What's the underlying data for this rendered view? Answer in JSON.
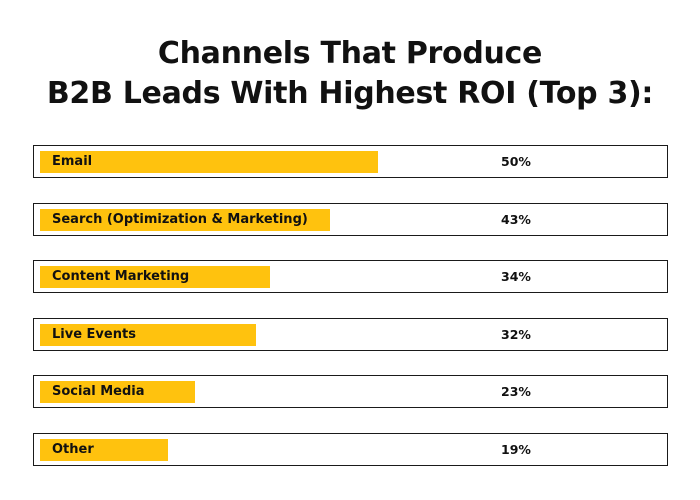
{
  "title": {
    "line1": "Channels That Produce",
    "line2": "B2B Leads With Highest ROI (Top 3):"
  },
  "chart_data": {
    "type": "bar",
    "orientation": "horizontal",
    "title": "Channels That Produce B2B Leads With Highest ROI (Top 3):",
    "categories": [
      "Email",
      "Search (Optimization & Marketing)",
      "Content Marketing",
      "Live Events",
      "Social Media",
      "Other"
    ],
    "values": [
      50,
      43,
      34,
      32,
      23,
      19
    ],
    "value_labels": [
      "50%",
      "43%",
      "34%",
      "32%",
      "23%",
      "19%"
    ],
    "unit": "%",
    "xlabel": "",
    "ylabel": "",
    "bar_color": "#ffc20e",
    "grid": false,
    "legend": "none"
  }
}
